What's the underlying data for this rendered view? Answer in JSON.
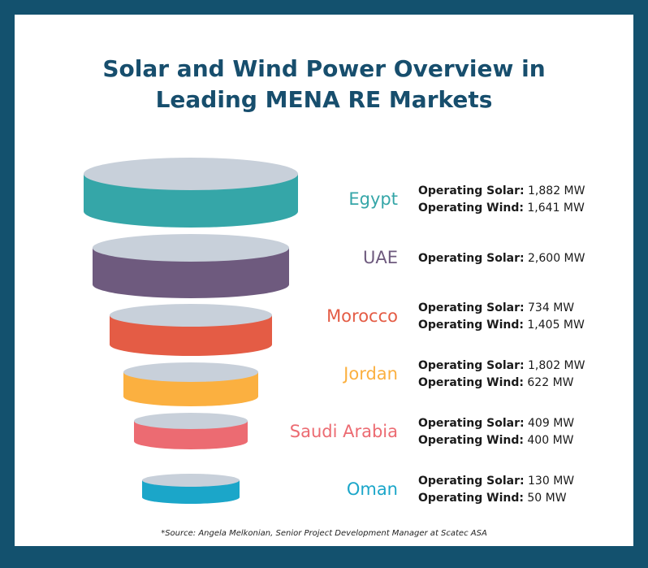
{
  "title_line1": "Solar and Wind Power Overview in",
  "title_line2": "Leading MENA RE Markets",
  "top_color": "#c8d0da",
  "markets": [
    {
      "name": "Egypt",
      "color": "#35a6a8",
      "stats": [
        {
          "label": "Operating Solar:",
          "value": "1,882 MW"
        },
        {
          "label": "Operating Wind:",
          "value": "1,641 MW"
        }
      ]
    },
    {
      "name": "UAE",
      "color": "#6e5a7e",
      "stats": [
        {
          "label": "Operating Solar:",
          "value": "2,600 MW"
        }
      ]
    },
    {
      "name": "Morocco",
      "color": "#e45c45",
      "stats": [
        {
          "label": "Operating Solar:",
          "value": "734 MW"
        },
        {
          "label": "Operating Wind:",
          "value": "1,405 MW"
        }
      ]
    },
    {
      "name": "Jordan",
      "color": "#fbb040",
      "stats": [
        {
          "label": "Operating Solar:",
          "value": "1,802 MW"
        },
        {
          "label": "Operating Wind:",
          "value": "622 MW"
        }
      ]
    },
    {
      "name": "Saudi Arabia",
      "color": "#ec6b72",
      "stats": [
        {
          "label": "Operating Solar:",
          "value": "409 MW"
        },
        {
          "label": "Operating Wind:",
          "value": "400 MW"
        }
      ]
    },
    {
      "name": "Oman",
      "color": "#1ba6c9",
      "stats": [
        {
          "label": "Operating Solar:",
          "value": "130 MW"
        },
        {
          "label": "Operating Wind:",
          "value": "50 MW"
        }
      ]
    }
  ],
  "source": "*Source: Angela Melkonian, Senior Project Development Manager at Scatec ASA"
}
